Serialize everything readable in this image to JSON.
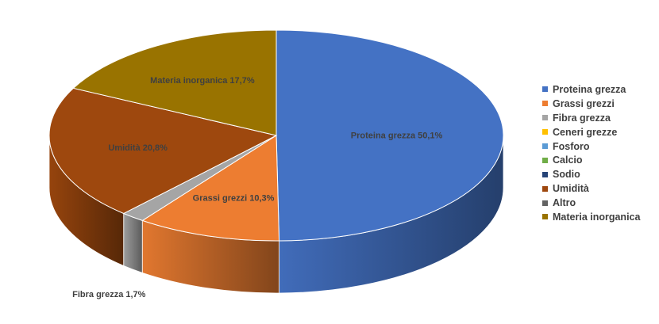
{
  "chart_data": {
    "type": "pie",
    "title": "",
    "style": "3d",
    "legend_position": "right",
    "series": [
      {
        "name": "Proteina grezza",
        "value": 50.1,
        "color": "#4472C4",
        "data_label": "Proteina grezza 50,1%"
      },
      {
        "name": "Grassi grezzi",
        "value": 10.3,
        "color": "#ED7D31",
        "data_label": "Grassi grezzi 10,3%"
      },
      {
        "name": "Fibra grezza",
        "value": 1.7,
        "color": "#A5A5A5",
        "data_label": "Fibra grezza 1,7%"
      },
      {
        "name": "Ceneri grezze",
        "value": 0,
        "color": "#FFC000",
        "data_label": ""
      },
      {
        "name": "Fosforo",
        "value": 0,
        "color": "#5B9BD5",
        "data_label": ""
      },
      {
        "name": "Calcio",
        "value": 0,
        "color": "#70AD47",
        "data_label": ""
      },
      {
        "name": "Sodio",
        "value": 0,
        "color": "#264478",
        "data_label": ""
      },
      {
        "name": "Umidità",
        "value": 20.8,
        "color": "#9E480E",
        "data_label": "Umidità 20,8%"
      },
      {
        "name": "Altro",
        "value": 0,
        "color": "#636363",
        "data_label": ""
      },
      {
        "name": "Materia inorganica",
        "value": 17.7,
        "color": "#997300",
        "data_label": "Materia inorganica 17,7%"
      }
    ]
  }
}
